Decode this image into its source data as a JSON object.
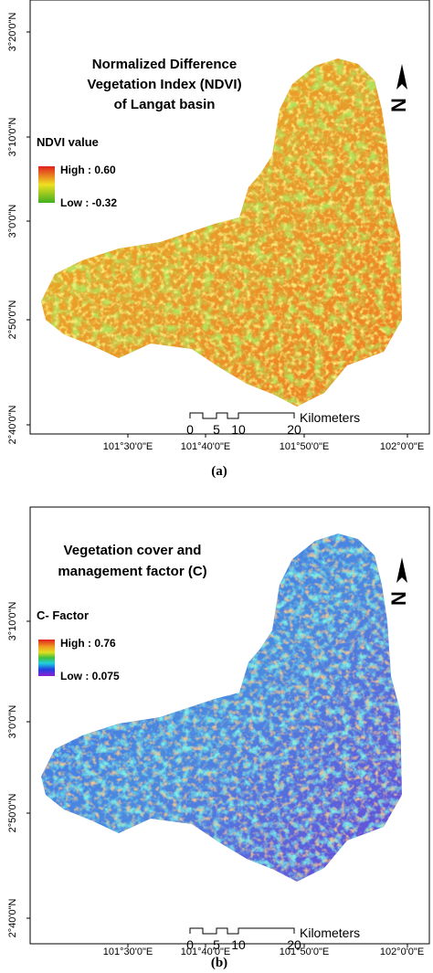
{
  "panels": [
    {
      "title": [
        "Normalized Difference",
        "Vegetation Index (NDVI)",
        "of Langat basin"
      ],
      "legend_title": "NDVI value",
      "legend_high": "High : 0.60",
      "legend_low": "Low : -0.32",
      "latitudes": [
        "3°20'0\"N",
        "3°10'0\"N",
        "3°0'0\"N",
        "2°50'0\"N",
        "2°40'0\"N"
      ],
      "longitudes": [
        "101°30'0\"E",
        "101°40'0\"E",
        "101°50'0\"E",
        "102°0'0\"E"
      ],
      "scale_labels": [
        "0",
        "5",
        "10",
        "20"
      ],
      "scale_unit": "Kilometers",
      "north": "N",
      "caption": "(a)"
    },
    {
      "title": [
        "Vegetation cover and",
        "management factor (C)"
      ],
      "legend_title": "C- Factor",
      "legend_high": "High : 0.76",
      "legend_low": "Low : 0.075",
      "latitudes": [
        "3°10'0\"N",
        "3°0'0\"N",
        "2°50'0\"N",
        "2°40'0\"N"
      ],
      "longitudes": [
        "101°30'0\"E",
        "101°40'0\"E",
        "101°50'0\"E",
        "102°0'0\"E"
      ],
      "scale_labels": [
        "0",
        "5",
        "10",
        "20"
      ],
      "scale_unit": "Kilometers",
      "north": "N",
      "caption": "(b)"
    }
  ]
}
